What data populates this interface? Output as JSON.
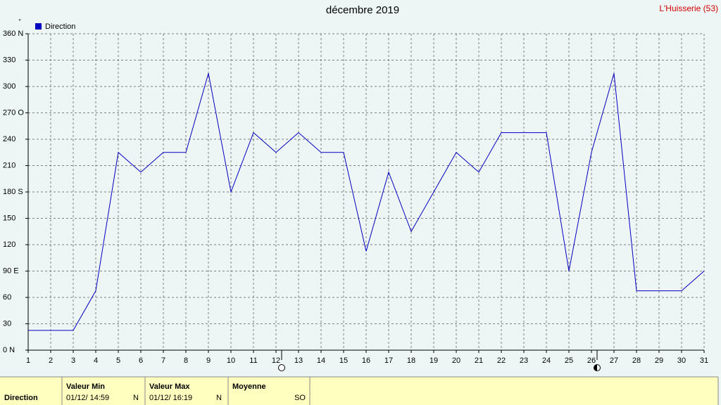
{
  "chart_data": {
    "type": "line",
    "title": "décembre 2019",
    "location": "L'Huisserie (53)",
    "y_unit": "°",
    "x": [
      1,
      2,
      3,
      4,
      5,
      6,
      7,
      8,
      9,
      10,
      11,
      12,
      13,
      14,
      15,
      16,
      17,
      18,
      19,
      20,
      21,
      22,
      23,
      24,
      25,
      26,
      27,
      28,
      29,
      30,
      31
    ],
    "series": [
      {
        "name": "Direction",
        "color": "#0000c0",
        "values": [
          22.5,
          22.5,
          22.5,
          67.5,
          225,
          202.5,
          225,
          225,
          315,
          180,
          247.5,
          225,
          247.5,
          225,
          225,
          112.5,
          202.5,
          135,
          180,
          225,
          202.5,
          247.5,
          247.5,
          247.5,
          90,
          225,
          315,
          67.5,
          67.5,
          67.5,
          90
        ]
      }
    ],
    "xlim": [
      1,
      31
    ],
    "xticks": [
      1,
      2,
      3,
      4,
      5,
      6,
      7,
      8,
      9,
      10,
      11,
      12,
      13,
      14,
      15,
      16,
      17,
      18,
      19,
      20,
      21,
      22,
      23,
      24,
      25,
      26,
      27,
      28,
      29,
      30,
      31
    ],
    "ylim": [
      0,
      360
    ],
    "yticks": [
      {
        "value": 0,
        "label": "0  N"
      },
      30,
      60,
      {
        "value": 90,
        "label": "90  E"
      },
      120,
      150,
      {
        "value": 180,
        "label": "180 S"
      },
      210,
      240,
      {
        "value": 270,
        "label": "270 O"
      },
      300,
      330,
      {
        "value": 360,
        "label": "360 N"
      }
    ],
    "grid": true,
    "legend": "top-left"
  },
  "summary": {
    "row_label": "Direction",
    "min_label": "Valeur Min",
    "min_time": "01/12/  14:59",
    "min_value": "N",
    "max_label": "Valeur Max",
    "max_time": "01/12/  16:19",
    "max_value": "N",
    "mean_label": "Moyenne",
    "mean_value": "SO"
  }
}
